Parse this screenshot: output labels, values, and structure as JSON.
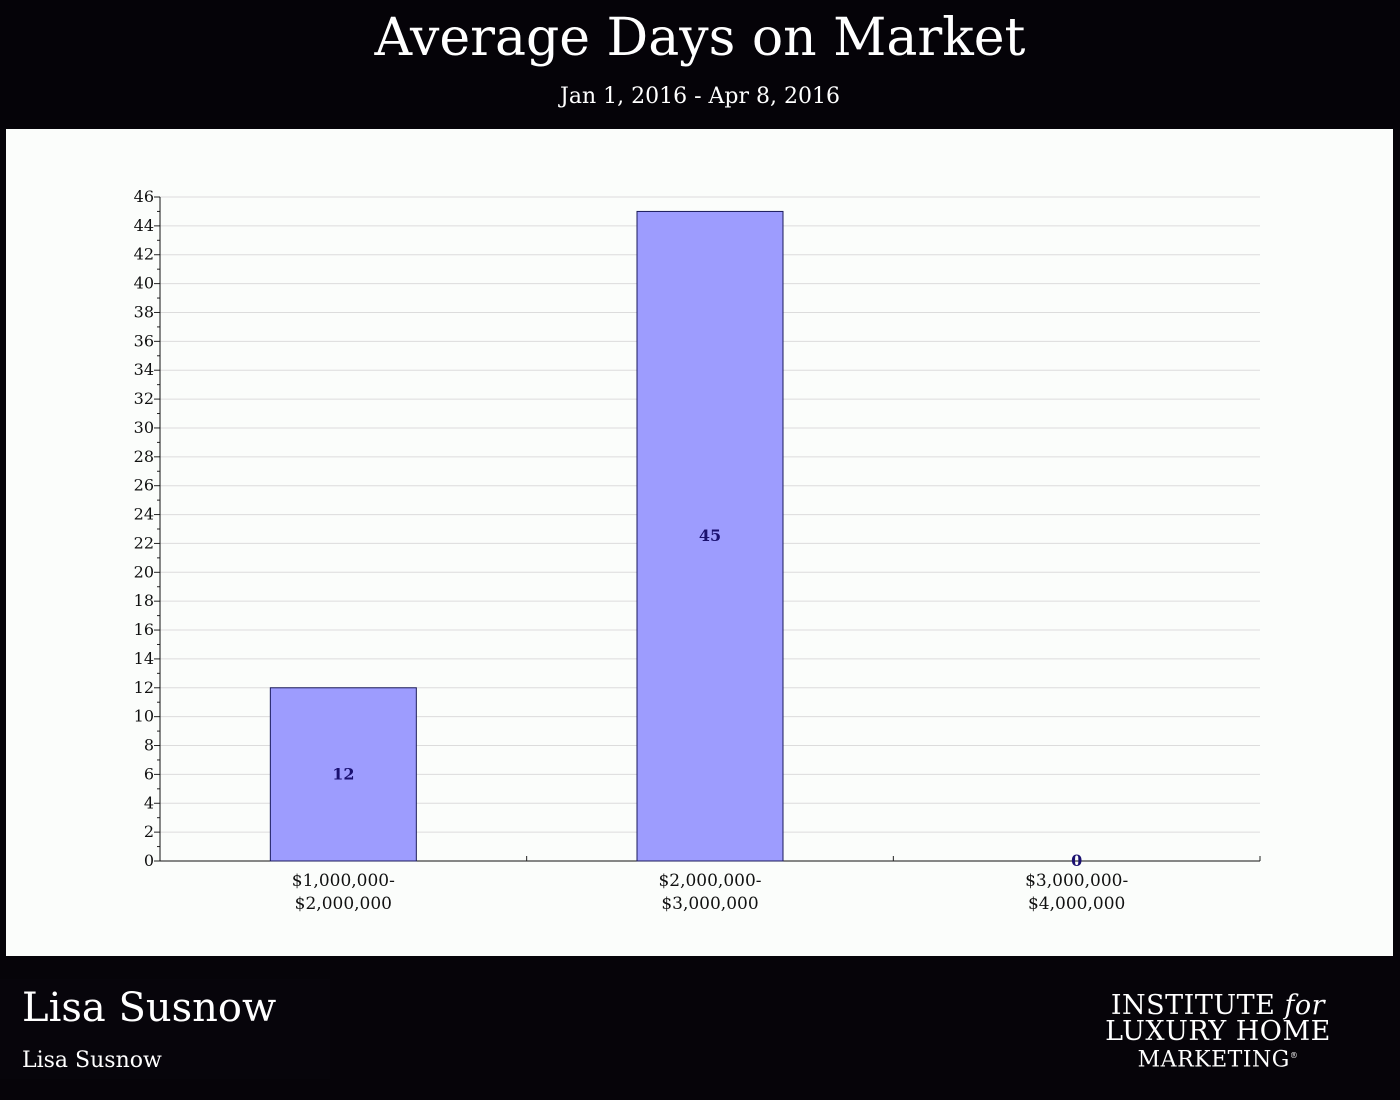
{
  "header": {
    "title": "Average Days on Market",
    "subtitle": "Jan 1, 2016 - Apr 8, 2016"
  },
  "chart_data": {
    "type": "bar",
    "title": "Average Days on Market",
    "subtitle": "Jan 1, 2016 - Apr 8, 2016",
    "categories": [
      [
        "$1,000,000-",
        "$2,000,000"
      ],
      [
        "$2,000,000-",
        "$3,000,000"
      ],
      [
        "$3,000,000-",
        "$4,000,000"
      ]
    ],
    "values": [
      12,
      45,
      0
    ],
    "xlabel": "",
    "ylabel": "",
    "ylim": [
      0,
      46
    ],
    "ytick_step": 2,
    "grid": true,
    "legend": "none",
    "colors": {
      "bar_fill": "#9d9cfe",
      "bar_stroke": "#1a1a5a",
      "value_label": "#1a1070"
    }
  },
  "footer": {
    "agent_name": "Lisa Susnow",
    "agent_subtitle": "Lisa Susnow",
    "logo_line1": "INSTITUTE",
    "logo_line1_italic": "for",
    "logo_line2": "LUXURY HOME",
    "logo_line3": "MARKETING",
    "logo_reg": "®"
  }
}
